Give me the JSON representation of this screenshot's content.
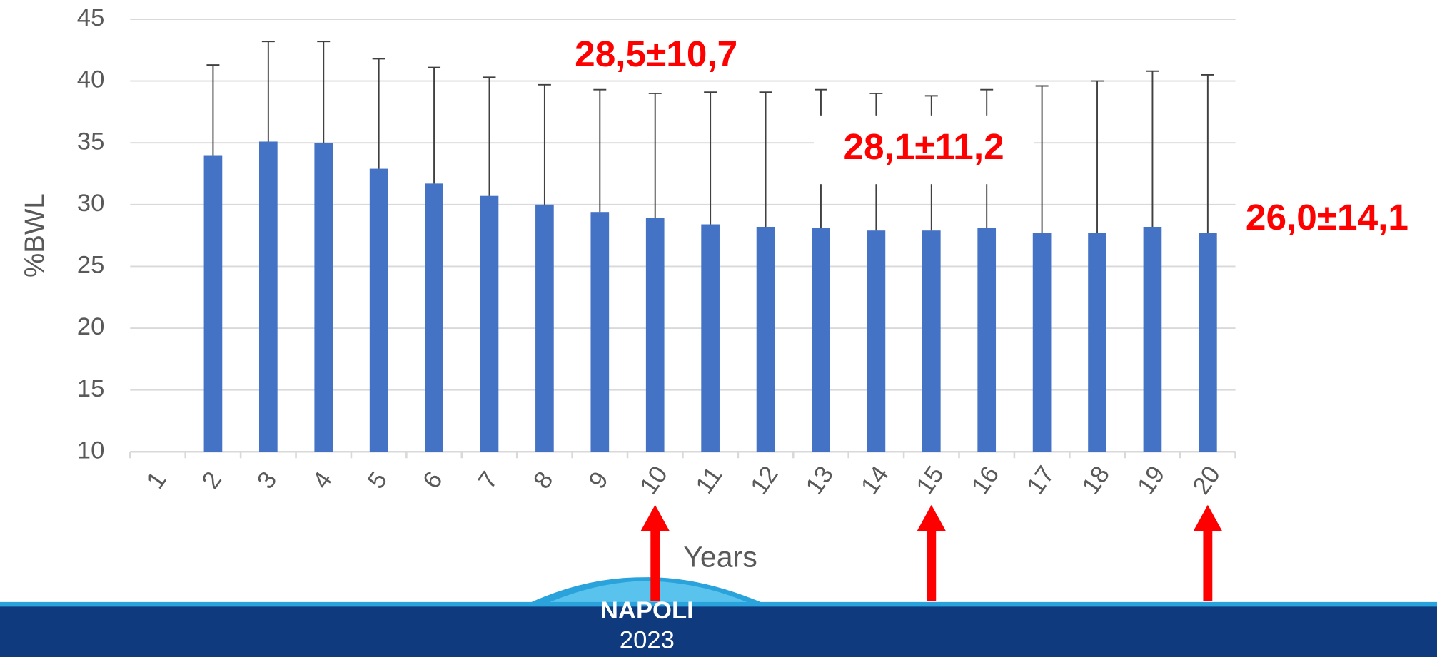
{
  "chart_data": {
    "type": "bar",
    "y_label": "%BWL",
    "x_label": "Years",
    "categories": [
      "1",
      "2",
      "3",
      "4",
      "5",
      "6",
      "7",
      "8",
      "9",
      "10",
      "11",
      "12",
      "13",
      "14",
      "15",
      "16",
      "17",
      "18",
      "19",
      "20"
    ],
    "values": [
      null,
      34,
      35.1,
      35,
      32.9,
      31.7,
      30.7,
      30,
      29.4,
      28.9,
      28.4,
      28.2,
      28.1,
      27.9,
      27.9,
      28.1,
      27.7,
      27.7,
      28.2,
      27.7
    ],
    "errors": [
      null,
      7.3,
      8.1,
      8.2,
      8.9,
      9.4,
      9.6,
      9.7,
      9.9,
      10.1,
      10.7,
      10.9,
      11.2,
      11.1,
      10.9,
      11.2,
      11.9,
      12.3,
      12.6,
      12.8
    ],
    "color": "#4472c4",
    "ylim": [
      10,
      45
    ],
    "yticks": [
      10,
      15,
      20,
      25,
      30,
      35,
      40,
      45
    ],
    "grid": true,
    "annotations": [
      "28,5±10,7",
      "28,1±11,2",
      "26,0±14,1"
    ]
  },
  "footer": {
    "line1": "NAPOLI",
    "line2": "2023"
  }
}
